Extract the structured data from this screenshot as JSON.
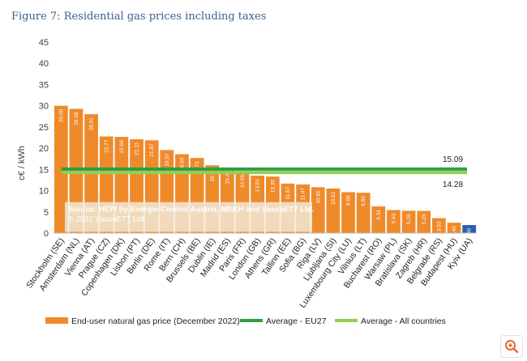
{
  "figure_title": "Figure 7: Residential gas prices including taxes",
  "chart_data": {
    "type": "bar",
    "ylabel": "c€ / kWh",
    "ylim": [
      0,
      45
    ],
    "yticks": [
      0,
      5,
      10,
      15,
      20,
      25,
      30,
      35,
      40,
      45
    ],
    "categories": [
      "Stockholm (SE)",
      "Amsterdam (NL)",
      "Vienna (AT)",
      "Prague (CZ)",
      "Copenhagen (DK)",
      "Lisbon (PT)",
      "Berlin (DE)",
      "Rome (IT)",
      "Bern (CH)",
      "Brussels (BE)",
      "Dublin (IE)",
      "Madrid (ES)",
      "Paris (FR)",
      "London (GB)",
      "Athens (GR)",
      "Tallinn (EE)",
      "Sofia (BG)",
      "Riga (LV)",
      "Ljubljana (SI)",
      "Luxembourg City (LU)",
      "Vilnius (LT)",
      "Bucharest (RO)",
      "Warsaw (PL)",
      "Bratislava (SK)",
      "Zagreb (HR)",
      "Belgrade (RS)",
      "Budapest (HU)",
      "Kyiv (UA)"
    ],
    "value_labels": [
      "30.00",
      "29.28",
      "28.01",
      "22.77",
      "22.66",
      "22.11",
      "21.87",
      "19.57",
      "18.59",
      "17.71",
      "15.98",
      "15.44",
      "14.55",
      "13.54",
      "13.33",
      "11.67",
      "11.47",
      "10.81",
      "10.51",
      "9.65",
      "9.50",
      "6.31",
      "5.43",
      "5.26",
      "5.23",
      "3.53",
      "2.45",
      "1.90"
    ],
    "values": [
      30.0,
      29.28,
      28.01,
      22.77,
      22.66,
      22.11,
      21.87,
      19.57,
      18.59,
      17.71,
      15.98,
      15.44,
      14.55,
      13.54,
      13.33,
      11.67,
      11.47,
      10.81,
      10.51,
      9.65,
      9.5,
      6.31,
      5.43,
      5.26,
      5.23,
      3.53,
      2.45,
      1.9
    ],
    "bar_colors": {
      "default": "#ef8a2b",
      "highlight": "#2e5fb0"
    },
    "highlight_index": 27,
    "averages": [
      {
        "name": "Average - EU27",
        "value": 15.09,
        "label": "15.09",
        "color": "#2e9e45"
      },
      {
        "name": "Average - All countries",
        "value": 14.28,
        "label": "14.28",
        "color": "#92d050"
      }
    ],
    "legend": [
      {
        "label": "End-user natural gas price (December 2022)",
        "color": "#ef8a2b"
      },
      {
        "label": "Average - EU27",
        "color": "#2e9e45"
      },
      {
        "label": "Average - All countries",
        "color": "#92d050"
      }
    ],
    "legend_position": "bottom",
    "source": [
      "Source: HEPI by Energie-Control Austria, MEKH and VaasaETT Ltd.",
      "© 2022 VaasaETT Ltd."
    ]
  },
  "zoom_icon": "zoom-in-icon"
}
